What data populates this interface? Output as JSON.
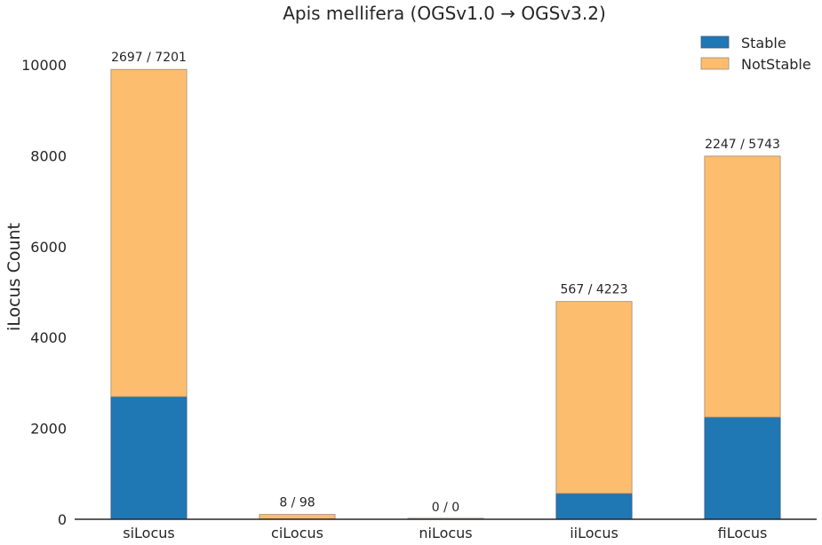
{
  "chart_data": {
    "type": "bar",
    "stacked": true,
    "title": "Apis mellifera (OGSv1.0 → OGSv3.2)",
    "xlabel": "",
    "ylabel": "iLocus Count",
    "ylim": [
      0,
      10800
    ],
    "yticks": [
      0,
      2000,
      4000,
      6000,
      8000,
      10000
    ],
    "categories": [
      "siLocus",
      "ciLocus",
      "niLocus",
      "iiLocus",
      "fiLocus"
    ],
    "series": [
      {
        "name": "Stable",
        "color": "#1f77b4",
        "values": [
          2697,
          8,
          0,
          567,
          2247
        ]
      },
      {
        "name": "NotStable",
        "color": "#fdbd6f",
        "values": [
          7201,
          98,
          0,
          4223,
          5743
        ]
      }
    ],
    "annotations": [
      "2697 / 7201",
      "8 / 98",
      "0 / 0",
      "567 / 4223",
      "2247 / 5743"
    ],
    "grid": false,
    "legend_position": "top-right"
  }
}
